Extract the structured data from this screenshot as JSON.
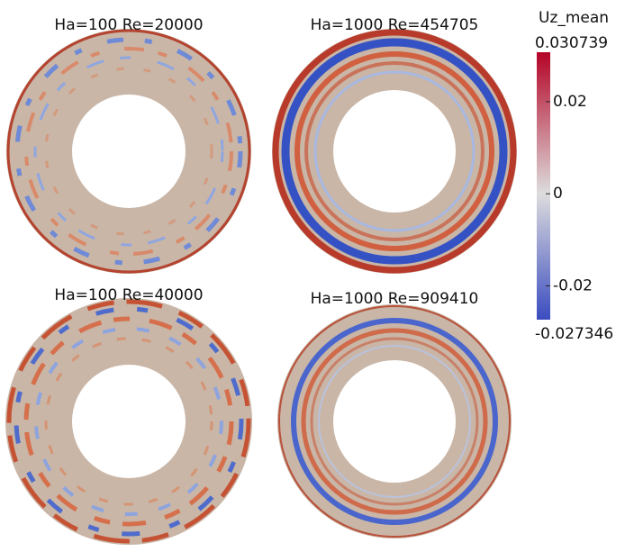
{
  "panels": [
    {
      "title": "Ha=100 Re=20000"
    },
    {
      "title": "Ha=1000 Re=454705"
    },
    {
      "title": "Ha=100 Re=40000"
    },
    {
      "title": "Ha=1000 Re=909410"
    }
  ],
  "colorbar": {
    "title": "Uz_mean",
    "range": [
      -0.027346,
      0.030739
    ],
    "ticks": [
      0.02,
      0,
      -0.02
    ]
  }
}
